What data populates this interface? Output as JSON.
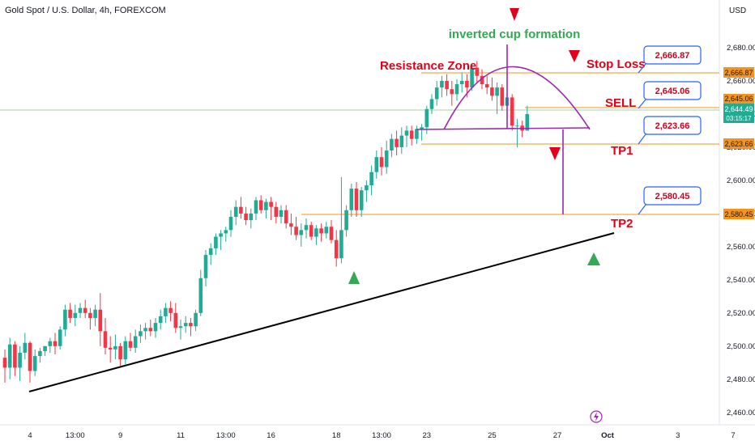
{
  "header": {
    "title": "Gold Spot / U.S. Dollar, 4h, FOREXCOM",
    "currency": "USD"
  },
  "colors": {
    "up": "#22ab94",
    "down": "#f23645",
    "orange": "#f7931a",
    "purple": "#9c27b0",
    "annotation_red": "#e0001a",
    "annotation_green": "#34a853",
    "callout_border": "#2962ff",
    "current_price_bg": "#22ab94"
  },
  "chart_data": {
    "type": "candlestick",
    "ylim": [
      2455,
      2700
    ],
    "y_ticks": [
      "2,680.00",
      "2,660.00",
      "2,640.00",
      "2,620.00",
      "2,600.00",
      "2,580.00",
      "2,560.00",
      "2,540.00",
      "2,520.00",
      "2,500.00",
      "2,480.00",
      "2,460.00"
    ],
    "y_tick_values": [
      2680,
      2660,
      2640,
      2620,
      2600,
      2580,
      2560,
      2540,
      2520,
      2500,
      2480,
      2460
    ],
    "x_ticks": [
      "4",
      "13:00",
      "9",
      "11",
      "13:00",
      "16",
      "18",
      "13:00",
      "23",
      "25",
      "27",
      "Oct",
      "3",
      "7"
    ],
    "x_tick_index": [
      5,
      14,
      23,
      35,
      44,
      53,
      66,
      75,
      84,
      97,
      110,
      120,
      134,
      145
    ],
    "candles": [
      [
        2493,
        2498,
        2478,
        2487
      ],
      [
        2487,
        2505,
        2480,
        2501
      ],
      [
        2501,
        2503,
        2482,
        2487
      ],
      [
        2487,
        2500,
        2479,
        2496
      ],
      [
        2496,
        2508,
        2492,
        2502
      ],
      [
        2502,
        2503,
        2478,
        2485
      ],
      [
        2485,
        2498,
        2482,
        2494
      ],
      [
        2494,
        2499,
        2490,
        2497
      ],
      [
        2497,
        2500,
        2494,
        2500
      ],
      [
        2500,
        2505,
        2496,
        2503
      ],
      [
        2503,
        2508,
        2495,
        2500
      ],
      [
        2500,
        2512,
        2498,
        2510
      ],
      [
        2510,
        2525,
        2506,
        2522
      ],
      [
        2522,
        2526,
        2514,
        2517
      ],
      [
        2517,
        2525,
        2512,
        2520
      ],
      [
        2520,
        2526,
        2517,
        2523
      ],
      [
        2523,
        2528,
        2517,
        2520
      ],
      [
        2520,
        2523,
        2510,
        2517
      ],
      [
        2517,
        2525,
        2512,
        2522
      ],
      [
        2522,
        2532,
        2500,
        2509
      ],
      [
        2509,
        2517,
        2495,
        2499
      ],
      [
        2499,
        2506,
        2490,
        2498
      ],
      [
        2498,
        2507,
        2492,
        2500
      ],
      [
        2500,
        2502,
        2488,
        2492
      ],
      [
        2492,
        2506,
        2489,
        2503
      ],
      [
        2503,
        2508,
        2497,
        2499
      ],
      [
        2499,
        2510,
        2496,
        2506
      ],
      [
        2506,
        2513,
        2502,
        2509
      ],
      [
        2509,
        2514,
        2504,
        2511
      ],
      [
        2511,
        2516,
        2506,
        2509
      ],
      [
        2509,
        2517,
        2505,
        2514
      ],
      [
        2514,
        2522,
        2510,
        2518
      ],
      [
        2518,
        2526,
        2514,
        2523
      ],
      [
        2523,
        2527,
        2515,
        2520
      ],
      [
        2520,
        2526,
        2508,
        2511
      ],
      [
        2511,
        2516,
        2504,
        2512
      ],
      [
        2512,
        2518,
        2508,
        2514
      ],
      [
        2514,
        2517,
        2506,
        2512
      ],
      [
        2512,
        2522,
        2509,
        2520
      ],
      [
        2520,
        2546,
        2518,
        2541
      ],
      [
        2541,
        2558,
        2536,
        2555
      ],
      [
        2555,
        2562,
        2549,
        2559
      ],
      [
        2559,
        2568,
        2555,
        2566
      ],
      [
        2566,
        2570,
        2558,
        2568
      ],
      [
        2568,
        2572,
        2563,
        2570
      ],
      [
        2570,
        2582,
        2566,
        2578
      ],
      [
        2578,
        2588,
        2573,
        2584
      ],
      [
        2584,
        2590,
        2577,
        2580
      ],
      [
        2580,
        2584,
        2573,
        2576
      ],
      [
        2576,
        2583,
        2571,
        2580
      ],
      [
        2580,
        2590,
        2576,
        2588
      ],
      [
        2588,
        2591,
        2580,
        2582
      ],
      [
        2582,
        2589,
        2577,
        2587
      ],
      [
        2587,
        2590,
        2576,
        2584
      ],
      [
        2584,
        2587,
        2574,
        2578
      ],
      [
        2578,
        2585,
        2574,
        2582
      ],
      [
        2582,
        2585,
        2571,
        2574
      ],
      [
        2574,
        2580,
        2567,
        2572
      ],
      [
        2572,
        2578,
        2564,
        2567
      ],
      [
        2567,
        2574,
        2560,
        2570
      ],
      [
        2570,
        2577,
        2565,
        2573
      ],
      [
        2573,
        2575,
        2564,
        2566
      ],
      [
        2566,
        2573,
        2561,
        2571
      ],
      [
        2571,
        2574,
        2563,
        2568
      ],
      [
        2568,
        2575,
        2565,
        2572
      ],
      [
        2572,
        2576,
        2562,
        2564
      ],
      [
        2564,
        2570,
        2548,
        2553
      ],
      [
        2553,
        2602,
        2550,
        2570
      ],
      [
        2570,
        2585,
        2566,
        2582
      ],
      [
        2582,
        2598,
        2578,
        2595
      ],
      [
        2595,
        2599,
        2578,
        2582
      ],
      [
        2582,
        2596,
        2578,
        2594
      ],
      [
        2594,
        2600,
        2587,
        2597
      ],
      [
        2597,
        2609,
        2591,
        2605
      ],
      [
        2605,
        2618,
        2601,
        2614
      ],
      [
        2614,
        2620,
        2603,
        2608
      ],
      [
        2608,
        2624,
        2604,
        2618
      ],
      [
        2618,
        2628,
        2614,
        2625
      ],
      [
        2625,
        2630,
        2615,
        2620
      ],
      [
        2620,
        2632,
        2616,
        2627
      ],
      [
        2627,
        2633,
        2620,
        2630
      ],
      [
        2630,
        2633,
        2621,
        2625
      ],
      [
        2625,
        2633,
        2622,
        2631
      ],
      [
        2631,
        2634,
        2624,
        2632
      ],
      [
        2632,
        2645,
        2628,
        2643
      ],
      [
        2643,
        2652,
        2640,
        2649
      ],
      [
        2649,
        2660,
        2645,
        2656
      ],
      [
        2656,
        2663,
        2650,
        2660
      ],
      [
        2660,
        2664,
        2651,
        2655
      ],
      [
        2655,
        2660,
        2645,
        2652
      ],
      [
        2652,
        2661,
        2648,
        2658
      ],
      [
        2658,
        2665,
        2653,
        2660
      ],
      [
        2660,
        2664,
        2650,
        2656
      ],
      [
        2656,
        2670,
        2654,
        2668
      ],
      [
        2668,
        2672,
        2659,
        2663
      ],
      [
        2663,
        2667,
        2655,
        2658
      ],
      [
        2658,
        2663,
        2652,
        2656
      ],
      [
        2656,
        2662,
        2648,
        2651
      ],
      [
        2651,
        2659,
        2640,
        2656
      ],
      [
        2656,
        2658,
        2642,
        2645
      ],
      [
        2645,
        2654,
        2640,
        2650
      ],
      [
        2650,
        2652,
        2630,
        2633
      ],
      [
        2633,
        2637,
        2620,
        2633
      ],
      [
        2633,
        2636,
        2626,
        2630
      ],
      [
        2630,
        2645,
        2630,
        2640
      ]
    ],
    "price_lines": {
      "stop_loss": 2666.87,
      "sell": 2645.06,
      "tp1": 2623.66,
      "tp2": 2580.45
    },
    "current_price": "2,644.49",
    "countdown": "03:15:17",
    "axis_price_labels": [
      "2,666.87",
      "2,645.06",
      "2,623.66",
      "2,580.45"
    ]
  },
  "annotations": {
    "cup_label": "inverted cup formation",
    "resistance": "Resistance Zone",
    "stop_loss": "Stop Loss",
    "sell": "SELL",
    "tp1": "TP1",
    "tp2": "TP2",
    "callouts": [
      "2,666.87",
      "2,645.06",
      "2,623.66",
      "2,580.45"
    ]
  }
}
